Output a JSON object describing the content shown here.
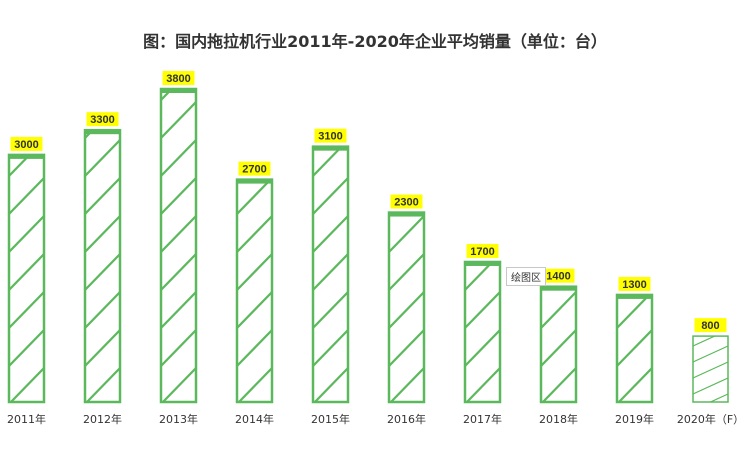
{
  "chart_data": {
    "type": "bar",
    "title": "图：国内拖拉机行业2011年-2020年企业平均销量（单位：台）",
    "categories": [
      "2011年",
      "2012年",
      "2013年",
      "2014年",
      "2015年",
      "2016年",
      "2017年",
      "2018年",
      "2019年",
      "2020年（F）"
    ],
    "values": [
      3000,
      3300,
      3800,
      2700,
      3100,
      2300,
      1700,
      1400,
      1300,
      800
    ],
    "ylim": [
      0,
      3800
    ],
    "grid": false,
    "legend": "none",
    "colors": {
      "bar_stroke": "#5cb85c",
      "bar_hatch": "#5cb85c",
      "label_bg": "#ffff00",
      "text": "#333333"
    }
  },
  "tooltip": "绘图区"
}
